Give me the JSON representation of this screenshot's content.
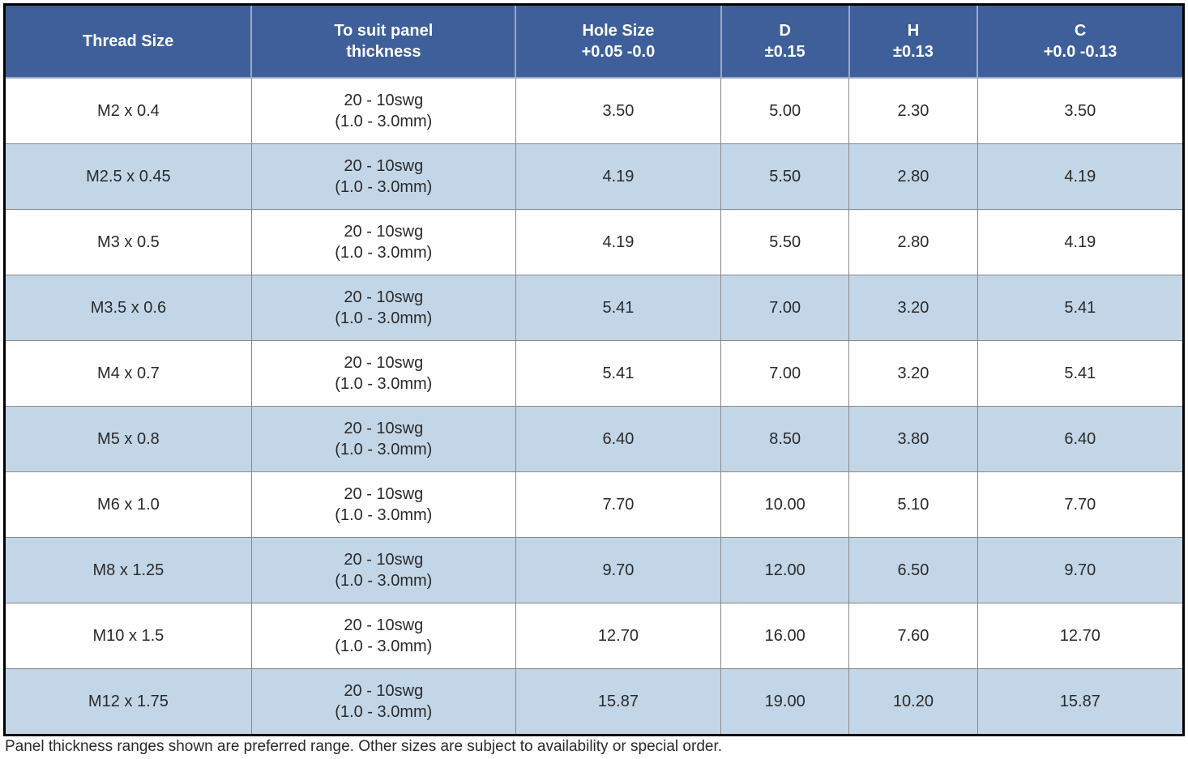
{
  "table": {
    "header_bg": "#3e5f9a",
    "header_fg": "#ffffff",
    "row_odd_bg": "#ffffff",
    "row_even_bg": "#c3d6e8",
    "border_color_outer": "#000000",
    "border_color_inner": "#888888",
    "font_size_header": 20,
    "font_size_body": 20,
    "columns": [
      {
        "line1": "Thread Size",
        "line2": ""
      },
      {
        "line1": "To suit panel",
        "line2": "thickness"
      },
      {
        "line1": "Hole Size",
        "line2": "+0.05 -0.0"
      },
      {
        "line1": "D",
        "line2": "±0.15"
      },
      {
        "line1": "H",
        "line2": "±0.13"
      },
      {
        "line1": "C",
        "line2": "+0.0 -0.13"
      }
    ],
    "rows": [
      {
        "thread": "M2 x 0.4",
        "panel_l1": "20 - 10swg",
        "panel_l2": "(1.0 - 3.0mm)",
        "hole": "3.50",
        "d": "5.00",
        "h": "2.30",
        "c": "3.50"
      },
      {
        "thread": "M2.5 x 0.45",
        "panel_l1": "20 - 10swg",
        "panel_l2": "(1.0 - 3.0mm)",
        "hole": "4.19",
        "d": "5.50",
        "h": "2.80",
        "c": "4.19"
      },
      {
        "thread": "M3 x 0.5",
        "panel_l1": "20 - 10swg",
        "panel_l2": "(1.0 - 3.0mm)",
        "hole": "4.19",
        "d": "5.50",
        "h": "2.80",
        "c": "4.19"
      },
      {
        "thread": "M3.5 x 0.6",
        "panel_l1": "20 - 10swg",
        "panel_l2": "(1.0 - 3.0mm)",
        "hole": "5.41",
        "d": "7.00",
        "h": "3.20",
        "c": "5.41"
      },
      {
        "thread": "M4 x 0.7",
        "panel_l1": "20 - 10swg",
        "panel_l2": "(1.0 - 3.0mm)",
        "hole": "5.41",
        "d": "7.00",
        "h": "3.20",
        "c": "5.41"
      },
      {
        "thread": "M5 x 0.8",
        "panel_l1": "20 - 10swg",
        "panel_l2": "(1.0 - 3.0mm)",
        "hole": "6.40",
        "d": "8.50",
        "h": "3.80",
        "c": "6.40"
      },
      {
        "thread": "M6 x 1.0",
        "panel_l1": "20 - 10swg",
        "panel_l2": "(1.0 - 3.0mm)",
        "hole": "7.70",
        "d": "10.00",
        "h": "5.10",
        "c": "7.70"
      },
      {
        "thread": "M8 x 1.25",
        "panel_l1": "20 - 10swg",
        "panel_l2": "(1.0 - 3.0mm)",
        "hole": "9.70",
        "d": "12.00",
        "h": "6.50",
        "c": "9.70"
      },
      {
        "thread": "M10 x 1.5",
        "panel_l1": "20 - 10swg",
        "panel_l2": "(1.0 - 3.0mm)",
        "hole": "12.70",
        "d": "16.00",
        "h": "7.60",
        "c": "12.70"
      },
      {
        "thread": "M12 x 1.75",
        "panel_l1": "20 - 10swg",
        "panel_l2": "(1.0 - 3.0mm)",
        "hole": "15.87",
        "d": "19.00",
        "h": "10.20",
        "c": "15.87"
      }
    ]
  },
  "footnote": "Panel thickness ranges shown are preferred range. Other sizes are subject to availability or special order."
}
